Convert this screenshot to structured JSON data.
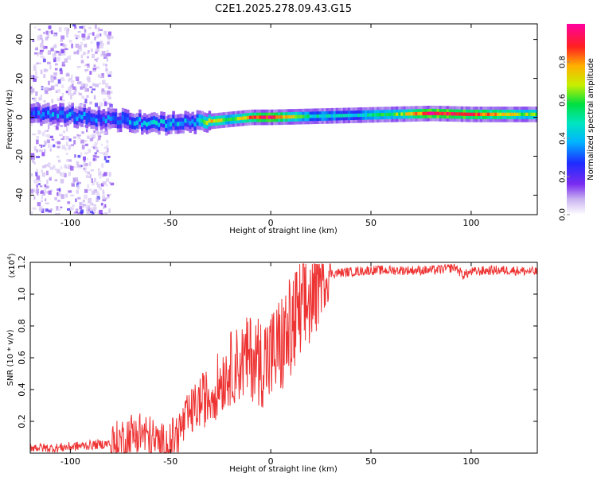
{
  "title": "C2E1.2025.278.09.43.G15",
  "chart_data": [
    {
      "type": "heatmap",
      "name": "spectrogram",
      "xlabel": "Height of straight line (km)",
      "ylabel": "Frequency (Hz)",
      "xlim": [
        -120,
        133
      ],
      "ylim": [
        -50,
        48
      ],
      "xticks": [
        -100,
        -50,
        0,
        50,
        100
      ],
      "yticks": [
        -40,
        -20,
        0,
        20,
        40
      ],
      "colorbar": {
        "label": "Normalized spectral amplitude",
        "range": [
          0,
          1
        ],
        "ticks": [
          "0.0",
          "0.2",
          "0.4",
          "0.6",
          "0.8"
        ],
        "tick_values": [
          0.0,
          0.2,
          0.4,
          0.6,
          0.8
        ],
        "colormap": [
          "#ffffff",
          "#c9b3f0",
          "#7a2cf0",
          "#1e2bff",
          "#00b4ff",
          "#00e5c0",
          "#00e040",
          "#c8f000",
          "#ffb000",
          "#ff2020",
          "#ff00a0"
        ]
      },
      "ridge": {
        "x": [
          -120,
          -100,
          -80,
          -60,
          -40,
          -30,
          -20,
          -10,
          0,
          20,
          40,
          60,
          80,
          100,
          133
        ],
        "freq_hz": [
          1,
          1,
          -1,
          -3,
          -3,
          -2,
          -1,
          0,
          0,
          0.5,
          1,
          1.5,
          2,
          1.5,
          1.5
        ],
        "peak_amplitude": [
          0.35,
          0.4,
          0.35,
          0.45,
          0.4,
          0.75,
          0.6,
          0.85,
          0.95,
          0.5,
          0.45,
          0.6,
          0.95,
          0.9,
          0.6
        ]
      },
      "noise_region": {
        "x_range": [
          -120,
          -80
        ],
        "freq_range_hz": [
          -50,
          48
        ]
      }
    },
    {
      "type": "line",
      "name": "snr",
      "xlabel": "Height of straight line (km)",
      "ylabel": "SNR (10 * v/v)",
      "yscale_label": "(x10^4)",
      "xlim": [
        -120,
        133
      ],
      "ylim": [
        0,
        1.2
      ],
      "xticks": [
        -100,
        -50,
        0,
        50,
        100
      ],
      "yticks": [
        "0.2",
        "0.4",
        "0.6",
        "0.8",
        "1.0",
        "1.2"
      ],
      "ytick_values": [
        0.2,
        0.4,
        0.6,
        0.8,
        1.0,
        1.2
      ],
      "series": [
        {
          "name": "SNR",
          "color": "#ee3333",
          "x": [
            -120,
            -110,
            -100,
            -90,
            -80,
            -75,
            -70,
            -65,
            -60,
            -55,
            -50,
            -45,
            -40,
            -35,
            -30,
            -25,
            -20,
            -15,
            -10,
            -5,
            0,
            5,
            10,
            15,
            20,
            25,
            30,
            40,
            50,
            60,
            70,
            80,
            88,
            92,
            96,
            100,
            110,
            120,
            133
          ],
          "y": [
            0.04,
            0.03,
            0.04,
            0.05,
            0.06,
            0.1,
            0.14,
            0.16,
            0.12,
            0.07,
            0.09,
            0.18,
            0.28,
            0.36,
            0.4,
            0.5,
            0.58,
            0.62,
            0.66,
            0.64,
            0.66,
            0.74,
            0.84,
            0.94,
            1.04,
            1.1,
            1.13,
            1.14,
            1.15,
            1.15,
            1.15,
            1.15,
            1.16,
            1.17,
            1.12,
            1.14,
            1.15,
            1.15,
            1.14
          ]
        }
      ]
    }
  ]
}
